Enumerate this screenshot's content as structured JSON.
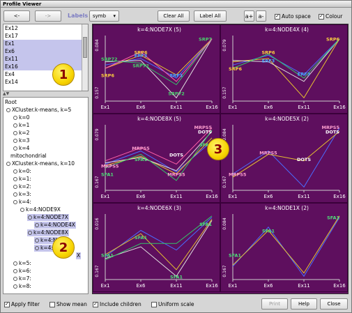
{
  "window": {
    "title": "Profile Viewer"
  },
  "toolbar": {
    "back_label": "<-",
    "forward_label": "->",
    "labels_label": "Labels",
    "symb_value": "symb",
    "clear_all_label": "Clear All",
    "label_all_label": "Label All",
    "font_bigger": "a+",
    "font_smaller": "a-",
    "auto_space_label": "Auto space",
    "auto_space_checked": true,
    "colour_label": "Colour",
    "colour_checked": true
  },
  "list": {
    "items": [
      {
        "label": "Ex12",
        "selected": false
      },
      {
        "label": "Ex17",
        "selected": false
      },
      {
        "label": "Ex1",
        "selected": true
      },
      {
        "label": "Ex6",
        "selected": true
      },
      {
        "label": "Ex11",
        "selected": true
      },
      {
        "label": "Ex16",
        "selected": true
      },
      {
        "label": "Ex4",
        "selected": false
      },
      {
        "label": "Ex14",
        "selected": false
      }
    ]
  },
  "tree": {
    "root": "Root",
    "kmeans5": "XCluster.k-means, k=5",
    "k5_items": [
      "k=0",
      "k=1",
      "k=2",
      "k=3",
      "k=4"
    ],
    "mito": "mitochondrial",
    "kmeans10": "XCluster.k-means, k=10",
    "k10_items": [
      "k=0:",
      "k=1:",
      "k=2:",
      "k=3:",
      "k=4:"
    ],
    "node9x": "k=4:NODE9X",
    "node7x": "k=4:NODE7X",
    "node4x": "k=4:NODE4X",
    "node8x": "k=4:NODE8X",
    "node_n": "k=4:N",
    "node_s": "k=4:",
    "node_x": "X",
    "k_rest": [
      "k=5:",
      "k=6:",
      "k=7:",
      "k=8:"
    ]
  },
  "callouts": [
    "1",
    "2",
    "3"
  ],
  "plots": {
    "x_ticks": [
      "Ex1",
      "Ex6",
      "Ex11",
      "Ex16"
    ],
    "panels": [
      {
        "title": "k=4:NODE7X (5)",
        "ymax": "0.084",
        "ymin": "0.157",
        "labels": [
          "SRP72",
          "SRP6",
          "ERF3",
          "SRP72",
          "ERF3",
          "SRP72",
          "SRP6",
          "SRP7"
        ]
      },
      {
        "title": "k=4:NODE4X (4)",
        "ymax": "0.079",
        "ymin": "0.157",
        "labels": [
          "SRP6",
          "SRP6",
          "ERF3",
          "ERF3",
          "SRP6"
        ]
      },
      {
        "title": "k=4:NODE8X (5)",
        "ymax": "0.079",
        "ymin": "0.167",
        "labels": [
          "MRPS5",
          "SFA1",
          "MRPS5",
          "SFA1",
          "DOTS",
          "MRPS5",
          "SFA1",
          "DOTS",
          "MRPS5"
        ]
      },
      {
        "title": "k=4:NODE5X (2)",
        "ymax": "0.084",
        "ymin": "0.167",
        "labels": [
          "MRPS5",
          "MRPS5",
          "DOTS",
          "MRPS5",
          "DOTS"
        ]
      },
      {
        "title": "k=4:NODE6X (3)",
        "ymax": "0.016",
        "ymin": "0.167",
        "labels": [
          "SFA1",
          "SFA1",
          "SFA1",
          "SFA1"
        ]
      },
      {
        "title": "k=4:NODE1X (2)",
        "ymax": "0.084",
        "ymin": "0.167",
        "labels": [
          "SFA1",
          "SFA1",
          "SFA1"
        ]
      }
    ]
  },
  "bottom": {
    "apply_filter": "Apply filter",
    "apply_filter_checked": true,
    "show_mean": "Show mean",
    "show_mean_checked": false,
    "include_children": "Include children",
    "include_children_checked": true,
    "uniform_scale": "Uniform scale",
    "uniform_scale_checked": false,
    "print": "Print",
    "help": "Help",
    "close": "Close"
  },
  "colors": {
    "plot_bg": "#5e0f5e",
    "selection": "#c5c5ec",
    "callout": "#f7d400"
  }
}
